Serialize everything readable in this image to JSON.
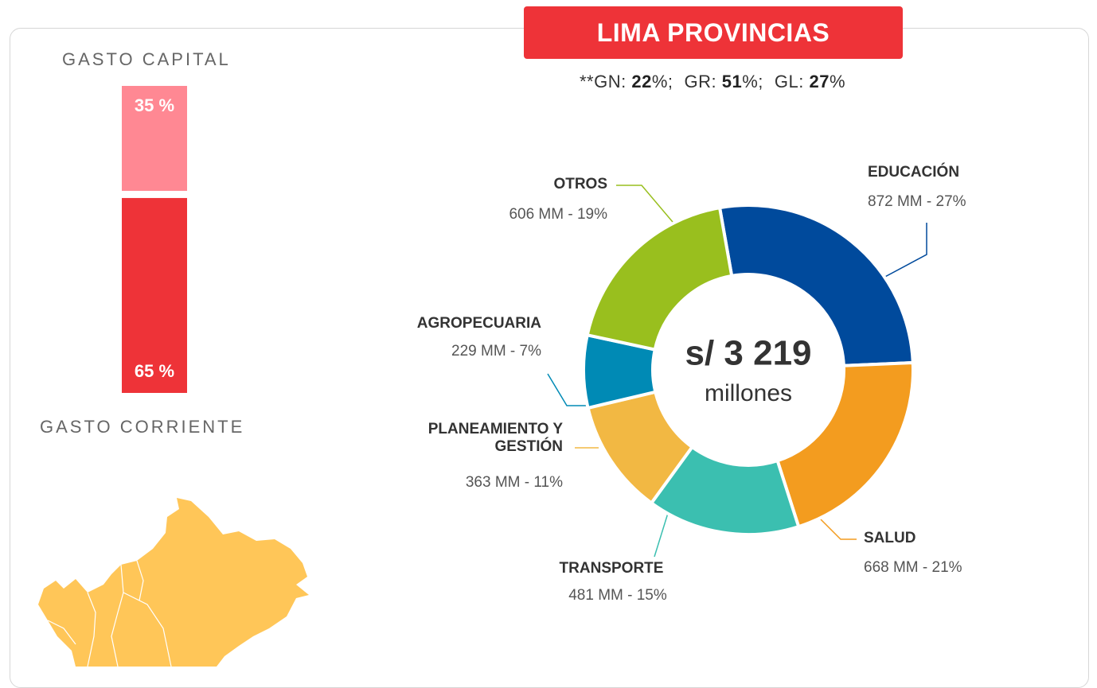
{
  "header": {
    "title": "LIMA PROVINCIAS",
    "shares": [
      {
        "prefix": "**GN: ",
        "value": 22,
        "suffix": "%;"
      },
      {
        "prefix": "GR: ",
        "value": 51,
        "suffix": "%;"
      },
      {
        "prefix": "GL: ",
        "value": 27,
        "suffix": "%"
      }
    ]
  },
  "chart_data": [
    {
      "type": "stacked-bar",
      "ylim": [
        0,
        100
      ],
      "series": [
        {
          "name": "GASTO CAPITAL",
          "color": "#ff8893",
          "values": [
            35
          ],
          "value_labels": [
            "35 %"
          ]
        },
        {
          "name": "GASTO CORRIENTE",
          "color": "#ee3338",
          "values": [
            65
          ],
          "value_labels": [
            "65 %"
          ]
        }
      ]
    },
    {
      "type": "donut",
      "center_label": "s/ 3 219",
      "center_sublabel": "millones",
      "categories": [
        "EDUCACIÓN",
        "SALUD",
        "TRANSPORTE",
        "PLANEAMIENTO Y GESTIÓN",
        "AGROPECUARIA",
        "OTROS"
      ],
      "values": [
        872,
        668,
        481,
        363,
        229,
        606
      ],
      "value_labels": [
        "872 MM - 27%",
        "668 MM - 21%",
        "481 MM - 15%",
        "363 MM - 11%",
        "229 MM - 7%",
        "606 MM - 19%"
      ],
      "colors": [
        "#004a9c",
        "#f39c1f",
        "#3bbfb0",
        "#f2b843",
        "#008ab5",
        "#99bf1e"
      ]
    }
  ]
}
